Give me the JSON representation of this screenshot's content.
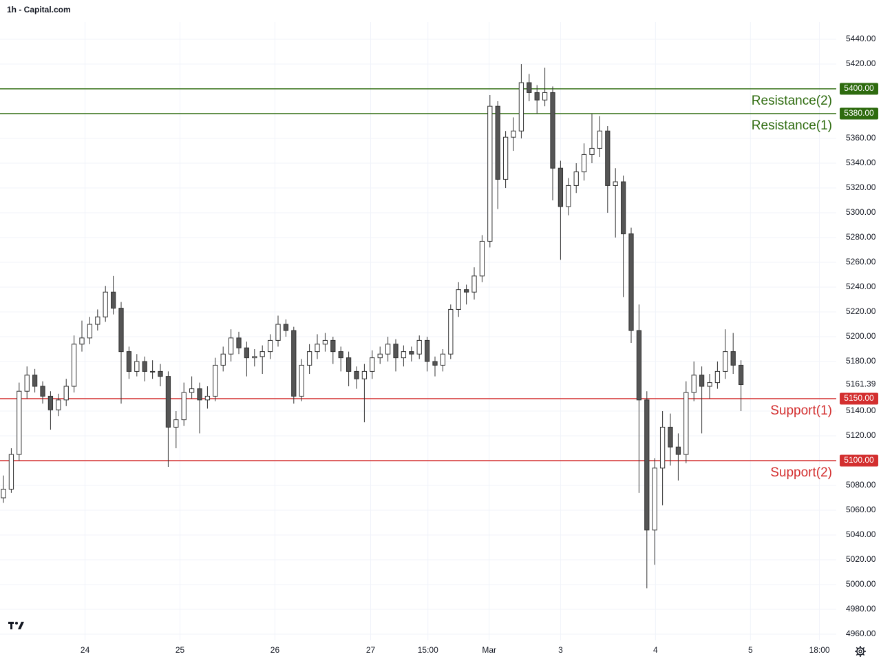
{
  "chart_data": {
    "type": "candlestick",
    "title": "1h - Capital.com",
    "xlim": [
      -0.44,
      106.14
    ],
    "ylim": [
      4955,
      5471.7
    ],
    "xticks": [
      {
        "value": 10.4,
        "label": "24"
      },
      {
        "value": 22.5,
        "label": "25"
      },
      {
        "value": 34.6,
        "label": "26"
      },
      {
        "value": 46.8,
        "label": "27"
      },
      {
        "value": 54.1,
        "label": "15:00"
      },
      {
        "value": 61.9,
        "label": "Mar"
      },
      {
        "value": 71,
        "label": "3"
      },
      {
        "value": 83.1,
        "label": "4"
      },
      {
        "value": 95.2,
        "label": "5"
      },
      {
        "value": 104,
        "label": "18:00"
      }
    ],
    "yticks": [
      {
        "value": 4960,
        "label": "4960.00"
      },
      {
        "value": 4980,
        "label": "4980.00"
      },
      {
        "value": 5000,
        "label": "5000.00"
      },
      {
        "value": 5020,
        "label": "5020.00"
      },
      {
        "value": 5040,
        "label": "5040.00"
      },
      {
        "value": 5060,
        "label": "5060.00"
      },
      {
        "value": 5080,
        "label": "5080.00"
      },
      {
        "value": 5120,
        "label": "5120.00"
      },
      {
        "value": 5140,
        "label": "5140.00"
      },
      {
        "value": 5180,
        "label": "5180.00"
      },
      {
        "value": 5200,
        "label": "5200.00"
      },
      {
        "value": 5220,
        "label": "5220.00"
      },
      {
        "value": 5240,
        "label": "5240.00"
      },
      {
        "value": 5260,
        "label": "5260.00"
      },
      {
        "value": 5280,
        "label": "5280.00"
      },
      {
        "value": 5300,
        "label": "5300.00"
      },
      {
        "value": 5320,
        "label": "5320.00"
      },
      {
        "value": 5340,
        "label": "5340.00"
      },
      {
        "value": 5360,
        "label": "5360.00"
      },
      {
        "value": 5420,
        "label": "5420.00"
      },
      {
        "value": 5440,
        "label": "5440.00"
      }
    ],
    "grid": true,
    "up_color": "#ffffff",
    "down_color": "#555555",
    "wick_color": "#333333",
    "last_price": {
      "value": 5161.39,
      "label": "5161.39"
    },
    "levels": [
      {
        "name": "Resistance(2)",
        "price": {
          "value": 5400,
          "label": "5400.00"
        },
        "color": "#2e6b0f"
      },
      {
        "name": "Resistance(1)",
        "price": {
          "value": 5380,
          "label": "5380.00"
        },
        "color": "#2e6b0f"
      },
      {
        "name": "Support(1)",
        "price": {
          "value": 5150,
          "label": "5150.00"
        },
        "color": "#d32f2f"
      },
      {
        "name": "Support(2)",
        "price": {
          "value": 5100,
          "label": "5100.00"
        },
        "color": "#d32f2f"
      }
    ],
    "ohlc": [
      [
        5070,
        5088,
        5066,
        5077
      ],
      [
        5077,
        5110,
        5074,
        5105
      ],
      [
        5105,
        5163,
        5100,
        5156
      ],
      [
        5156,
        5176,
        5150,
        5169
      ],
      [
        5169,
        5174,
        5155,
        5160
      ],
      [
        5160,
        5164,
        5146,
        5152
      ],
      [
        5152,
        5156,
        5125,
        5141
      ],
      [
        5141,
        5154,
        5136,
        5149
      ],
      [
        5149,
        5166,
        5144,
        5160
      ],
      [
        5160,
        5201,
        5155,
        5194
      ],
      [
        5194,
        5213,
        5188,
        5199
      ],
      [
        5199,
        5216,
        5194,
        5210
      ],
      [
        5210,
        5222,
        5205,
        5216
      ],
      [
        5216,
        5241,
        5212,
        5236
      ],
      [
        5236,
        5249,
        5218,
        5223
      ],
      [
        5223,
        5228,
        5146,
        5188
      ],
      [
        5188,
        5192,
        5166,
        5172
      ],
      [
        5172,
        5186,
        5168,
        5180
      ],
      [
        5180,
        5184,
        5164,
        5172
      ],
      [
        5172,
        5181,
        5166,
        5172
      ],
      [
        5172,
        5178,
        5160,
        5168
      ],
      [
        5168,
        5172,
        5095,
        5127
      ],
      [
        5127,
        5140,
        5110,
        5133
      ],
      [
        5133,
        5163,
        5128,
        5155
      ],
      [
        5155,
        5168,
        5150,
        5158
      ],
      [
        5158,
        5163,
        5122,
        5149
      ],
      [
        5149,
        5160,
        5142,
        5152
      ],
      [
        5152,
        5183,
        5148,
        5177
      ],
      [
        5177,
        5192,
        5172,
        5186
      ],
      [
        5186,
        5206,
        5180,
        5199
      ],
      [
        5199,
        5204,
        5186,
        5191
      ],
      [
        5191,
        5196,
        5168,
        5183
      ],
      [
        5183,
        5190,
        5176,
        5184
      ],
      [
        5184,
        5193,
        5170,
        5188
      ],
      [
        5188,
        5202,
        5182,
        5197
      ],
      [
        5197,
        5217,
        5192,
        5210
      ],
      [
        5210,
        5214,
        5200,
        5205
      ],
      [
        5205,
        5208,
        5146,
        5152
      ],
      [
        5152,
        5182,
        5148,
        5177
      ],
      [
        5177,
        5194,
        5170,
        5188
      ],
      [
        5188,
        5202,
        5182,
        5194
      ],
      [
        5194,
        5203,
        5188,
        5197
      ],
      [
        5197,
        5200,
        5178,
        5188
      ],
      [
        5188,
        5192,
        5172,
        5183
      ],
      [
        5183,
        5188,
        5160,
        5172
      ],
      [
        5172,
        5176,
        5158,
        5166
      ],
      [
        5166,
        5178,
        5131,
        5172
      ],
      [
        5172,
        5189,
        5166,
        5183
      ],
      [
        5183,
        5192,
        5178,
        5186
      ],
      [
        5186,
        5200,
        5180,
        5194
      ],
      [
        5194,
        5198,
        5172,
        5183
      ],
      [
        5183,
        5193,
        5176,
        5188
      ],
      [
        5188,
        5192,
        5180,
        5186
      ],
      [
        5186,
        5201,
        5182,
        5197
      ],
      [
        5197,
        5200,
        5172,
        5180
      ],
      [
        5180,
        5184,
        5168,
        5177
      ],
      [
        5177,
        5190,
        5172,
        5186
      ],
      [
        5186,
        5226,
        5182,
        5222
      ],
      [
        5222,
        5244,
        5216,
        5238
      ],
      [
        5238,
        5242,
        5226,
        5236
      ],
      [
        5236,
        5256,
        5230,
        5249
      ],
      [
        5249,
        5282,
        5244,
        5277
      ],
      [
        5277,
        5395,
        5272,
        5386
      ],
      [
        5386,
        5390,
        5303,
        5327
      ],
      [
        5327,
        5366,
        5320,
        5361
      ],
      [
        5361,
        5377,
        5350,
        5366
      ],
      [
        5366,
        5420,
        5360,
        5405
      ],
      [
        5405,
        5412,
        5390,
        5397
      ],
      [
        5397,
        5403,
        5380,
        5391
      ],
      [
        5391,
        5417,
        5386,
        5397
      ],
      [
        5397,
        5402,
        5310,
        5336
      ],
      [
        5336,
        5342,
        5262,
        5305
      ],
      [
        5305,
        5328,
        5298,
        5322
      ],
      [
        5322,
        5340,
        5316,
        5333
      ],
      [
        5333,
        5356,
        5326,
        5347
      ],
      [
        5347,
        5380,
        5340,
        5352
      ],
      [
        5352,
        5378,
        5345,
        5366
      ],
      [
        5366,
        5370,
        5300,
        5322
      ],
      [
        5322,
        5336,
        5280,
        5325
      ],
      [
        5325,
        5330,
        5232,
        5283
      ],
      [
        5283,
        5288,
        5195,
        5205
      ],
      [
        5205,
        5226,
        5074,
        5149
      ],
      [
        5149,
        5156,
        4997,
        5044
      ],
      [
        5044,
        5102,
        5016,
        5094
      ],
      [
        5094,
        5140,
        5064,
        5127
      ],
      [
        5127,
        5138,
        5096,
        5111
      ],
      [
        5111,
        5122,
        5084,
        5105
      ],
      [
        5105,
        5164,
        5098,
        5155
      ],
      [
        5155,
        5180,
        5148,
        5169
      ],
      [
        5169,
        5176,
        5122,
        5160
      ],
      [
        5160,
        5170,
        5150,
        5163
      ],
      [
        5163,
        5180,
        5158,
        5172
      ],
      [
        5172,
        5206,
        5166,
        5188
      ],
      [
        5188,
        5203,
        5170,
        5177
      ],
      [
        5177,
        5181,
        5140,
        5161.39
      ]
    ]
  }
}
